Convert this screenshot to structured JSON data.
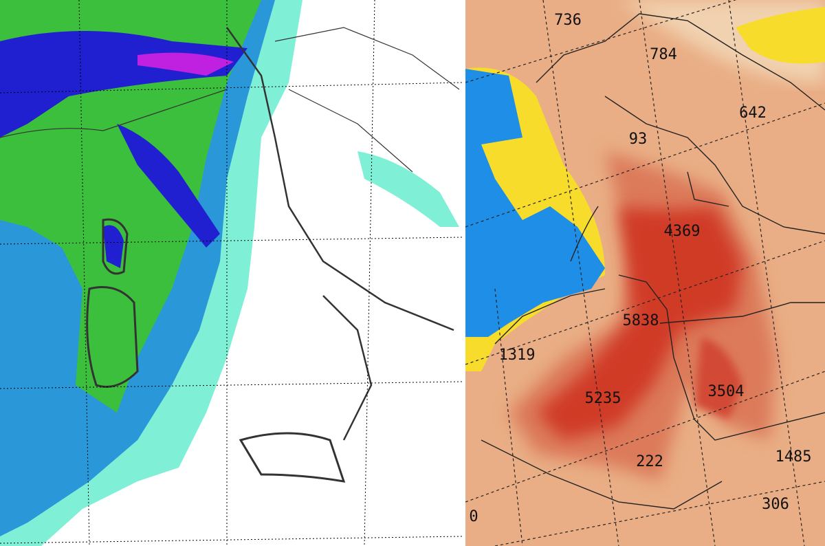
{
  "right_map": {
    "labels": [
      "736",
      "784",
      "642",
      "93",
      "4369",
      "5838",
      "1319",
      "5235",
      "3504",
      "222",
      "1485",
      "306",
      "0"
    ]
  }
}
